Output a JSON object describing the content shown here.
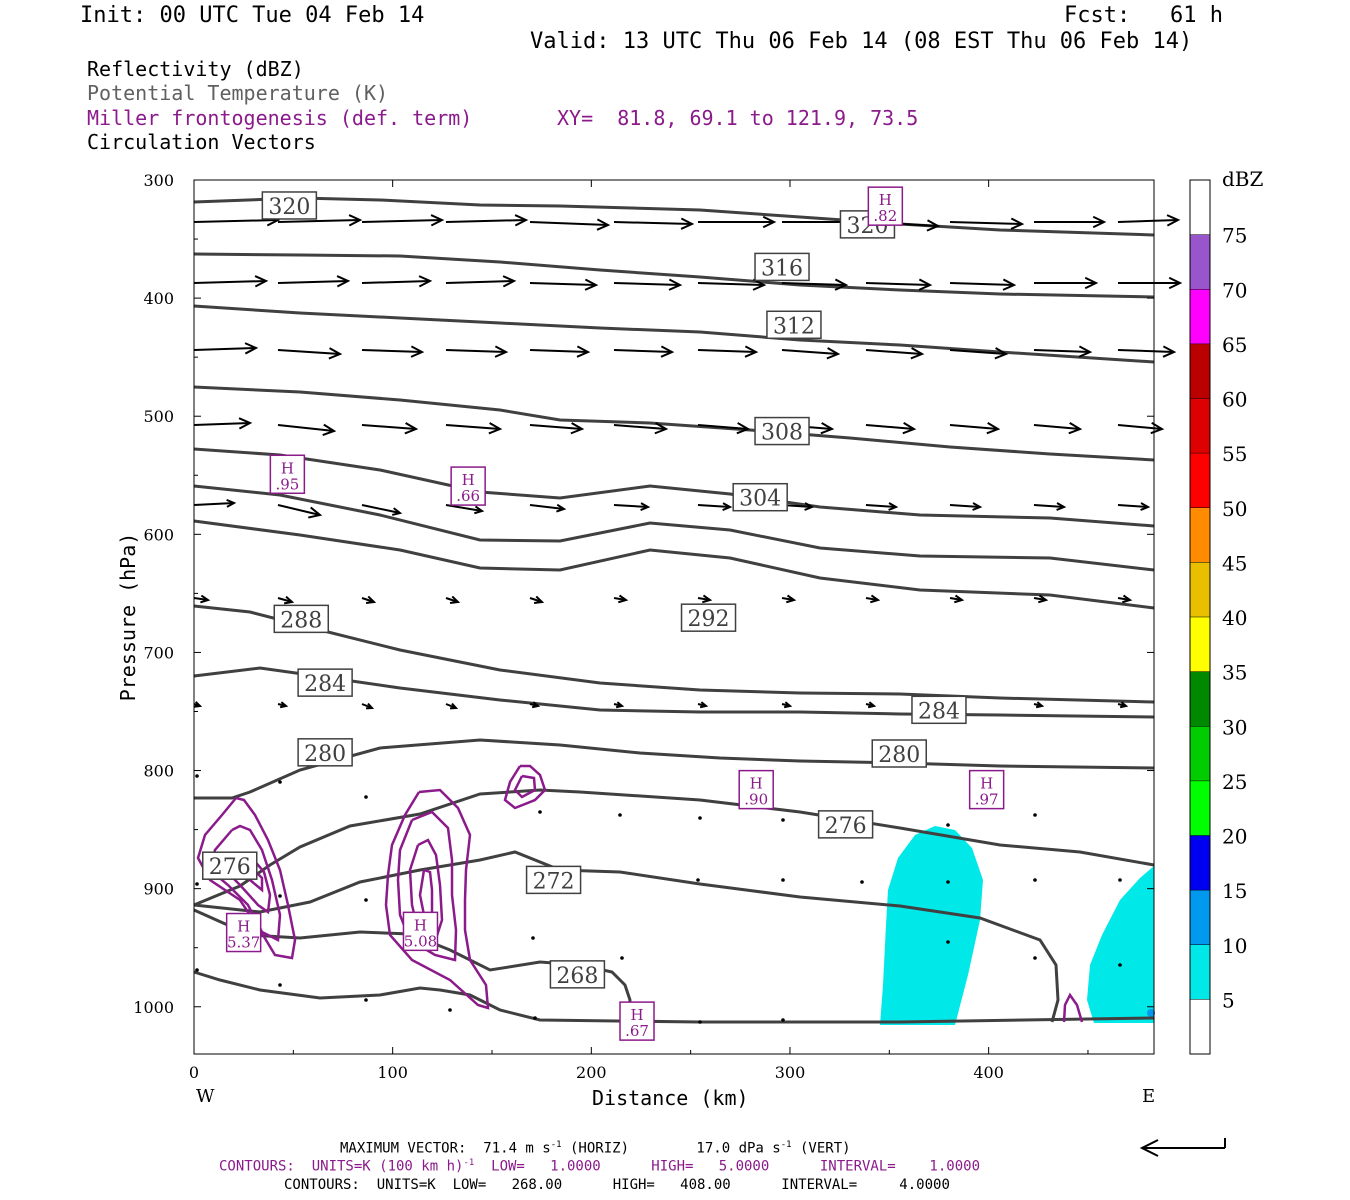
{
  "header": {
    "init": "Init: 00 UTC Tue 04 Feb 14",
    "fcst": "Fcst:   61 h",
    "valid": "Valid: 13 UTC Thu 06 Feb 14 (08 EST Thu 06 Feb 14)"
  },
  "legend": {
    "reflectivity": "Reflectivity (dBZ)",
    "theta": "Potential Temperature (K)",
    "miller": "Miller frontogenesis (def. term)",
    "xy": "XY=  81.8, 69.1 to 121.9, 73.5",
    "circulation": "Circulation Vectors"
  },
  "footer": {
    "max_vector_pre": "MAXIMUM VECTOR:  71.4 m s",
    "max_vector_sup": "-1",
    "max_vector_mid": " (HORIZ)        17.0 dPa s",
    "max_vector_sup2": "-1",
    "max_vector_post": " (VERT)",
    "contours_purple_pre": "CONTOURS:  UNITS=K (100 km h)",
    "contours_purple_sup": "-1",
    "contours_purple_post": "  LOW=   1.0000      HIGH=   5.0000      INTERVAL=    1.0000",
    "contours_black": "CONTOURS:  UNITS=K  LOW=   268.00      HIGH=   408.00      INTERVAL=     4.0000"
  },
  "chart_data": {
    "type": "cross-section",
    "xlabel": "Distance (km)",
    "ylabel": "Pressure (hPa)",
    "x_ticks": [
      0,
      100,
      200,
      300,
      400
    ],
    "y_ticks": [
      300,
      400,
      500,
      600,
      700,
      800,
      900,
      1000
    ],
    "xlim": [
      0,
      485
    ],
    "ylim": [
      300,
      1040
    ],
    "x_end_labels": {
      "left": "W",
      "right": "E"
    },
    "colorbar": {
      "title": "dBZ",
      "levels": [
        5,
        10,
        15,
        20,
        25,
        30,
        35,
        40,
        45,
        50,
        55,
        60,
        65,
        70,
        75
      ],
      "colors": [
        "#00e8e8",
        "#0099ee",
        "#0000f0",
        "#00ff00",
        "#00cc00",
        "#008800",
        "#ffff00",
        "#e8c000",
        "#ff8c00",
        "#ff0000",
        "#dd0000",
        "#bb0000",
        "#ff00ff",
        "#9955cc",
        "#ffffff"
      ]
    },
    "theta_labels": [
      {
        "value": "320",
        "x": 48,
        "p": 322
      },
      {
        "value": "320",
        "x": 339,
        "p": 338
      },
      {
        "value": "316",
        "x": 296,
        "p": 374
      },
      {
        "value": "312",
        "x": 302,
        "p": 423
      },
      {
        "value": "308",
        "x": 296,
        "p": 513
      },
      {
        "value": "304",
        "x": 285,
        "p": 569
      },
      {
        "value": "292",
        "x": 259,
        "p": 671
      },
      {
        "value": "288",
        "x": 54,
        "p": 672
      },
      {
        "value": "284",
        "x": 66,
        "p": 726
      },
      {
        "value": "284",
        "x": 375,
        "p": 749
      },
      {
        "value": "280",
        "x": 66,
        "p": 785
      },
      {
        "value": "280",
        "x": 355,
        "p": 786
      },
      {
        "value": "276",
        "x": 328,
        "p": 846
      },
      {
        "value": "276",
        "x": 18,
        "p": 881
      },
      {
        "value": "272",
        "x": 181,
        "p": 893
      },
      {
        "value": "268",
        "x": 193,
        "p": 973
      }
    ],
    "frontogenesis_maxima": [
      {
        "label": "H",
        "value": ".82",
        "x": 348,
        "p": 323
      },
      {
        "label": "H",
        "value": ".95",
        "x": 47,
        "p": 550
      },
      {
        "label": "H",
        "value": ".66",
        "x": 138,
        "p": 560
      },
      {
        "label": "H",
        "value": ".90",
        "x": 283,
        "p": 817
      },
      {
        "label": "H",
        "value": ".97",
        "x": 399,
        "p": 817
      },
      {
        "label": "H",
        "value": "5.37",
        "x": 25,
        "p": 938
      },
      {
        "label": "H",
        "value": "5.08",
        "x": 114,
        "p": 937
      },
      {
        "label": "H",
        "value": ".67",
        "x": 223,
        "p": 1013
      }
    ],
    "reflectivity_areas": [
      {
        "dbz": 5,
        "x": [
          345,
          395
        ],
        "p": [
          845,
          1015
        ]
      },
      {
        "dbz": 5,
        "x": [
          452,
          485
        ],
        "p": [
          875,
          1015
        ]
      }
    ]
  }
}
